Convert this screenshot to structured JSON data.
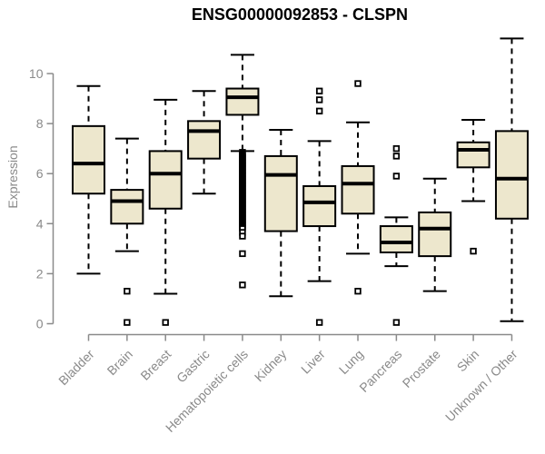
{
  "chart_data": {
    "type": "boxplot",
    "title": "ENSG00000092853 - CLSPN",
    "ylabel": "Expression",
    "xlabel": "",
    "ylim": [
      0,
      11.5
    ],
    "yticks": [
      0,
      2,
      4,
      6,
      8,
      10
    ],
    "grid": false,
    "legend": false,
    "categories": [
      "Bladder",
      "Brain",
      "Breast",
      "Gastric",
      "Hematopoietic cells",
      "Kidney",
      "Liver",
      "Lung",
      "Pancreas",
      "Prostate",
      "Skin",
      "Unknown / Other"
    ],
    "boxes": [
      {
        "category": "Bladder",
        "low": 2.0,
        "q1": 5.2,
        "median": 6.4,
        "q3": 7.9,
        "high": 9.5,
        "outliers": []
      },
      {
        "category": "Brain",
        "low": 2.9,
        "q1": 4.0,
        "median": 4.9,
        "q3": 5.35,
        "high": 7.4,
        "outliers": [
          1.3,
          0.05
        ]
      },
      {
        "category": "Breast",
        "low": 1.2,
        "q1": 4.6,
        "median": 6.0,
        "q3": 6.9,
        "high": 8.95,
        "outliers": [
          0.05
        ]
      },
      {
        "category": "Gastric",
        "low": 5.2,
        "q1": 6.6,
        "median": 7.7,
        "q3": 8.1,
        "high": 9.3,
        "outliers": []
      },
      {
        "category": "Hematopoietic cells",
        "low": 6.9,
        "q1": 8.35,
        "median": 9.05,
        "q3": 9.4,
        "high": 10.75,
        "outliers": [
          3.65,
          3.5,
          2.8,
          1.55
        ],
        "band": {
          "from": 6.85,
          "to": 3.8,
          "step": 0.05
        }
      },
      {
        "category": "Kidney",
        "low": 1.1,
        "q1": 3.7,
        "median": 5.95,
        "q3": 6.7,
        "high": 7.75,
        "outliers": []
      },
      {
        "category": "Liver",
        "low": 1.7,
        "q1": 3.9,
        "median": 4.85,
        "q3": 5.5,
        "high": 7.3,
        "outliers": [
          9.3,
          8.95,
          8.5,
          0.05
        ]
      },
      {
        "category": "Lung",
        "low": 2.8,
        "q1": 4.4,
        "median": 5.6,
        "q3": 6.3,
        "high": 8.05,
        "outliers": [
          9.6,
          1.3
        ]
      },
      {
        "category": "Pancreas",
        "low": 2.3,
        "q1": 2.85,
        "median": 3.25,
        "q3": 3.9,
        "high": 4.25,
        "outliers": [
          7.0,
          6.7,
          5.9,
          0.05
        ]
      },
      {
        "category": "Prostate",
        "low": 1.3,
        "q1": 2.7,
        "median": 3.8,
        "q3": 4.45,
        "high": 5.8,
        "outliers": []
      },
      {
        "category": "Skin",
        "low": 4.9,
        "q1": 6.25,
        "median": 6.95,
        "q3": 7.25,
        "high": 8.15,
        "outliers": [
          2.9
        ]
      },
      {
        "category": "Unknown / Other",
        "low": 0.1,
        "q1": 4.2,
        "median": 5.8,
        "q3": 7.7,
        "high": 11.4,
        "outliers": []
      }
    ],
    "colors": {
      "box_fill": "#EDE7CD",
      "box_stroke": "#000000",
      "median": "#000000",
      "whisker": "#000000",
      "axis": "#8A8A8A",
      "tick_text": "#8A8A8A",
      "title": "#000000",
      "background": "#FFFFFF"
    }
  }
}
